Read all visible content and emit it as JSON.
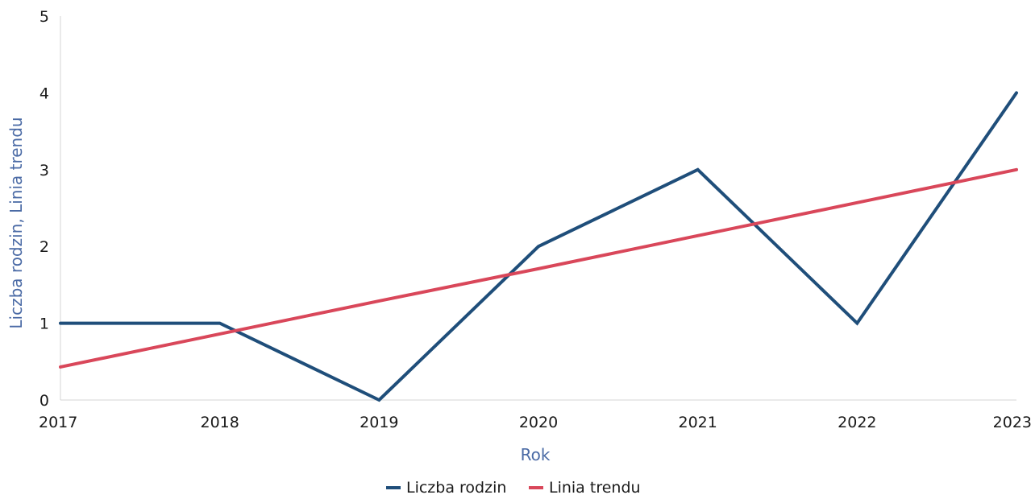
{
  "chart_data": {
    "type": "line",
    "title": "",
    "xlabel": "Rok",
    "ylabel": "Liczba rodzin, Linia trendu",
    "categories": [
      "2017",
      "2018",
      "2019",
      "2020",
      "2021",
      "2022",
      "2023"
    ],
    "yticks": [
      "0",
      "1",
      "2",
      "3",
      "4",
      "5"
    ],
    "ylim": [
      0,
      5
    ],
    "grid": false,
    "legend_position": "bottom-center",
    "series": [
      {
        "name": "Liczba rodzin",
        "color": "#1f4e7a",
        "values": [
          1,
          1,
          0,
          2,
          3,
          1,
          4
        ]
      },
      {
        "name": "Linia trendu",
        "color": "#d9475a",
        "values": [
          0.43,
          0.86,
          1.29,
          1.71,
          2.14,
          2.57,
          3.0
        ]
      }
    ],
    "axis_title_color": "#4a6aa5"
  }
}
